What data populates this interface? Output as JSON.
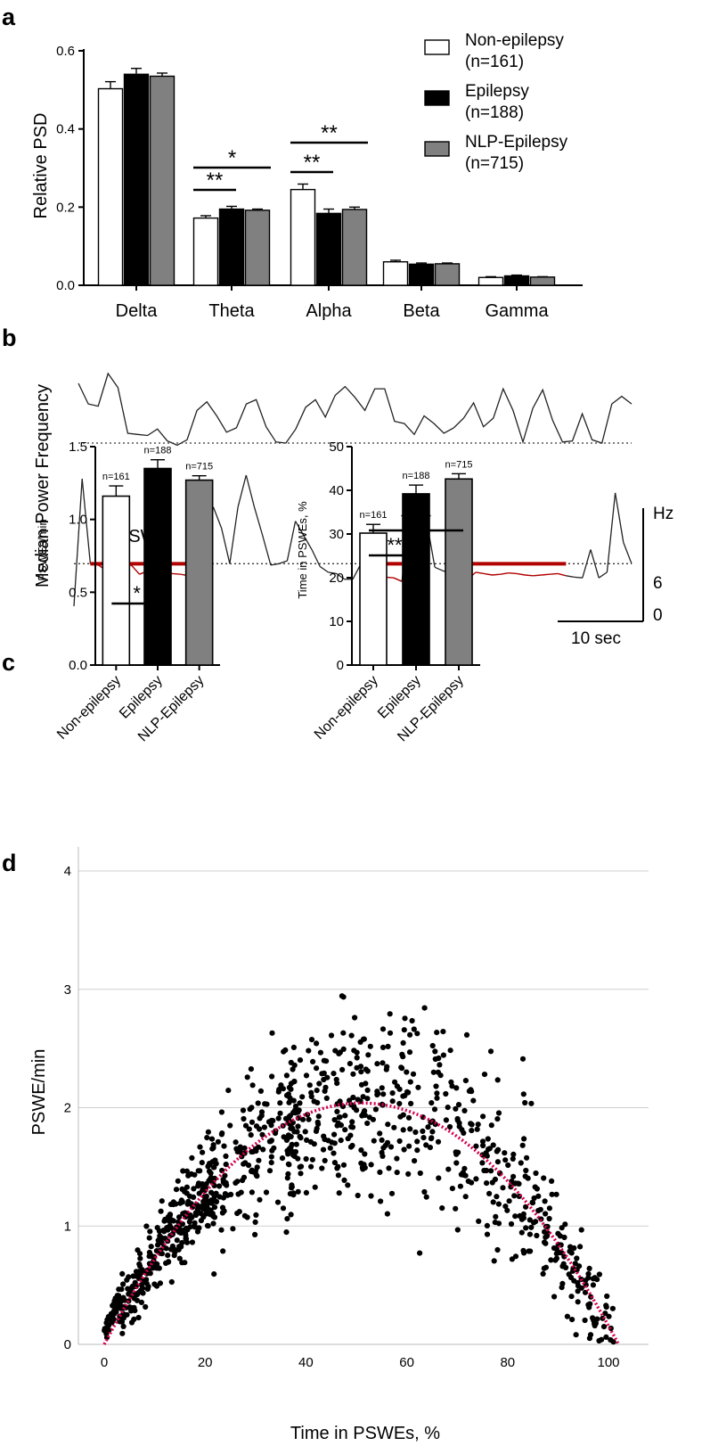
{
  "panels": {
    "a": {
      "letter": "a",
      "chart_data": {
        "type": "bar",
        "categories": [
          "Delta",
          "Theta",
          "Alpha",
          "Beta",
          "Gamma"
        ],
        "series": [
          {
            "name": "Non-epilepsy",
            "n_label": "(n=161)",
            "color": "#ffffff",
            "values": [
              0.503,
              0.172,
              0.245,
              0.06,
              0.02
            ],
            "errors": [
              0.018,
              0.006,
              0.014,
              0.004,
              0.002
            ]
          },
          {
            "name": "Epilepsy",
            "n_label": "(n=188)",
            "color": "#000000",
            "values": [
              0.54,
              0.195,
              0.184,
              0.054,
              0.024
            ],
            "errors": [
              0.015,
              0.007,
              0.011,
              0.003,
              0.002
            ]
          },
          {
            "name": "NLP-Epilepsy",
            "n_label": "(n=715)",
            "color": "#808080",
            "values": [
              0.535,
              0.192,
              0.194,
              0.055,
              0.021
            ],
            "errors": [
              0.008,
              0.003,
              0.006,
              0.002,
              0.001
            ]
          }
        ],
        "ylabel": "Relative PSD",
        "ylim": [
          0,
          0.6
        ],
        "yticks": [
          "0.0",
          "0.2",
          "0.4",
          "0.6"
        ],
        "significance": [
          {
            "category": "Theta",
            "from": 0,
            "to": 1,
            "stars": "**",
            "level": 1
          },
          {
            "category": "Theta",
            "from": 0,
            "to": 2,
            "stars": "*",
            "level": 2
          },
          {
            "category": "Alpha",
            "from": 0,
            "to": 1,
            "stars": "**",
            "level": 1
          },
          {
            "category": "Alpha",
            "from": 0,
            "to": 2,
            "stars": "**",
            "level": 2
          }
        ]
      }
    },
    "b": {
      "letter": "b",
      "ylabel": "Median Power Frequency",
      "pswe_label": "PSWE",
      "scale_unit": "Hz",
      "scale_mid": "6",
      "scale_low": "0",
      "time_scale": "10 sec",
      "chart_data": {
        "type": "line",
        "threshold_hz": 6,
        "trace1_hz": [
          11.5,
          9.6,
          9.4,
          12.4,
          11.1,
          6.9,
          6.8,
          6.7,
          7.3,
          6.2,
          5.8,
          6.3,
          9.0,
          9.8,
          8.5,
          7.0,
          7.4,
          9.6,
          10.0,
          7.5,
          6.1,
          6.0,
          7.3,
          9.3,
          10.0,
          8.4,
          10.4,
          11.2,
          10.2,
          9.0,
          11.0,
          11.0,
          8.0,
          7.8,
          6.8,
          8.5,
          7.8,
          6.9,
          7.4,
          8.3,
          9.7,
          7.5,
          8.3,
          11.0,
          9.0,
          6.1,
          9.2,
          10.9,
          8.1,
          6.1,
          6.2,
          8.7,
          6.3,
          6.0,
          9.6,
          10.3,
          9.6
        ],
        "trace2_hz": [
          0.0,
          18.0,
          6.0,
          5.8,
          5.0,
          5.2,
          5.6,
          5.8,
          4.5,
          5.0,
          4.8,
          4.7,
          4.6,
          4.5,
          4.3,
          12.0,
          9.0,
          14.0,
          11.0,
          6.0,
          14.0,
          18.5,
          14.0,
          10.0,
          5.8,
          6.0,
          6.4,
          12.0,
          10.0,
          8.0,
          5.6,
          4.8,
          4.6,
          3.8,
          3.8,
          6.0,
          4.5,
          5.4,
          4.1,
          4.0,
          3.5,
          15.0,
          15.0,
          12.0,
          5.5,
          5.0,
          4.6,
          4.0,
          3.8,
          4.8,
          4.6,
          4.4,
          4.5,
          4.7,
          4.6,
          4.4,
          4.3,
          4.4,
          4.5,
          4.6,
          4.3,
          4.1,
          4.0,
          8.0,
          4.0,
          4.8,
          16.0,
          9.0,
          6.0
        ],
        "pswe_segments": [
          [
            2,
            14
          ],
          [
            36,
            40
          ],
          [
            47,
            60
          ]
        ]
      }
    },
    "c_left": {
      "letter": "c",
      "chart_data": {
        "type": "bar",
        "categories": [
          "Non-epilepsy",
          "Epilepsy",
          "NLP-Epilepsy"
        ],
        "values": [
          1.16,
          1.35,
          1.27
        ],
        "errors": [
          0.07,
          0.06,
          0.03
        ],
        "colors": [
          "#ffffff",
          "#000000",
          "#808080"
        ],
        "bar_labels": [
          "n=161",
          "n=188",
          "n=715"
        ],
        "ylabel": "PSWEs/min",
        "ylim": [
          0,
          1.5
        ],
        "yticks": [
          "0.0",
          "0.5",
          "1.0",
          "1.5"
        ],
        "significance": [
          {
            "from": 0,
            "to": 1,
            "stars": "*",
            "level": 1
          }
        ]
      }
    },
    "c_right": {
      "chart_data": {
        "type": "bar",
        "categories": [
          "Non-epilepsy",
          "Epilepsy",
          "NLP-Epilepsy"
        ],
        "values": [
          30.2,
          39.2,
          42.6
        ],
        "errors": [
          2.0,
          2.0,
          1.2
        ],
        "colors": [
          "#ffffff",
          "#000000",
          "#808080"
        ],
        "bar_labels": [
          "n=161",
          "n=188",
          "n=715"
        ],
        "ylabel": "Time in PSWEs, %",
        "ylim": [
          0,
          50
        ],
        "yticks": [
          "0",
          "10",
          "20",
          "30",
          "40",
          "50"
        ],
        "significance": [
          {
            "from": 0,
            "to": 1,
            "stars": "**",
            "level": 1
          },
          {
            "from": 0,
            "to": 2,
            "stars": "****",
            "level": 2
          }
        ]
      }
    },
    "d": {
      "letter": "d",
      "chart_data": {
        "type": "scatter",
        "xlabel": "Time in PSWEs, %",
        "ylabel": "PSWE/min",
        "xlim": [
          -5,
          105
        ],
        "ylim": [
          0,
          4.3
        ],
        "xticks": [
          "0",
          "20",
          "40",
          "60",
          "80",
          "100"
        ],
        "yticks": [
          "0",
          "1",
          "2",
          "3",
          "4"
        ],
        "point_count": 1064,
        "fit": {
          "form": "y = a*x*(102 - x)",
          "a": 0.000784,
          "x_range": [
            0,
            102
          ],
          "color": "#d6004f"
        },
        "point_color": "#000000",
        "grid": true
      }
    }
  }
}
